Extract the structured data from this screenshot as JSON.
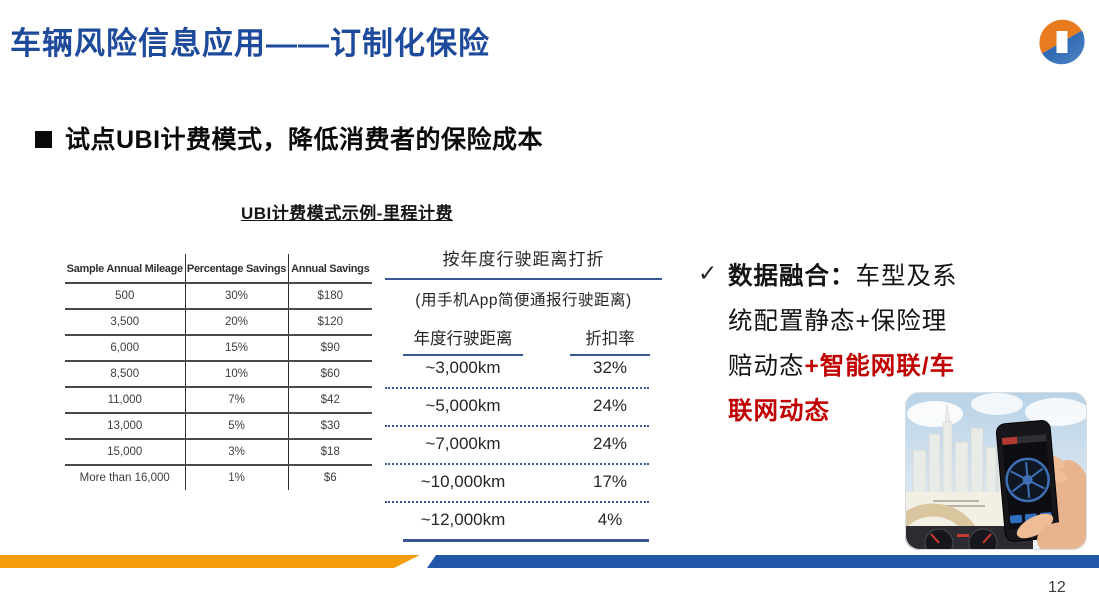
{
  "slide": {
    "title": "车辆风险信息应用——订制化保险",
    "page_number": "12"
  },
  "subtitle": "试点UBI计费模式，降低消费者的保险成本",
  "table_caption": "UBI计费模式示例-里程计费",
  "mileage_table": {
    "headers": [
      "Sample Annual Mileage",
      "Percentage Savings",
      "Annual Savings"
    ],
    "rows": [
      [
        "500",
        "30%",
        "$180"
      ],
      [
        "3,500",
        "20%",
        "$120"
      ],
      [
        "6,000",
        "15%",
        "$90"
      ],
      [
        "8,500",
        "10%",
        "$60"
      ],
      [
        "11,000",
        "7%",
        "$42"
      ],
      [
        "13,000",
        "5%",
        "$30"
      ],
      [
        "15,000",
        "3%",
        "$18"
      ],
      [
        "More than 16,000",
        "1%",
        "$6"
      ]
    ]
  },
  "discount_panel": {
    "title": "按年度行驶距离打折",
    "note": "(用手机App简便通报行驶距离)",
    "col1_header": "年度行驶距离",
    "col2_header": "折扣率",
    "rows": [
      [
        "~3,000km",
        "32%"
      ],
      [
        "~5,000km",
        "24%"
      ],
      [
        "~7,000km",
        "24%"
      ],
      [
        "~10,000km",
        "17%"
      ],
      [
        "~12,000km",
        "4%"
      ]
    ]
  },
  "fusion": {
    "check": "✓",
    "lines": [
      [
        {
          "t": "数据融合：",
          "s": "b"
        },
        {
          "t": "车型及系",
          "s": "n"
        }
      ],
      [
        {
          "t": "统配置静态+保险理",
          "s": "n"
        }
      ],
      [
        {
          "t": "赔动态",
          "s": "n"
        },
        {
          "t": "+智能网联/车",
          "s": "r"
        }
      ],
      [
        {
          "t": "联网动态",
          "s": "r"
        }
      ]
    ]
  },
  "colors": {
    "title_blue": "#1E4A9C",
    "rule_navy": "#3A5795",
    "highlight_red": "#C00000",
    "footer_orange": "#F59C0C",
    "footer_blue": "#2057A7",
    "logo_orange": "#E87B1E",
    "logo_blue": "#1C57A5"
  }
}
